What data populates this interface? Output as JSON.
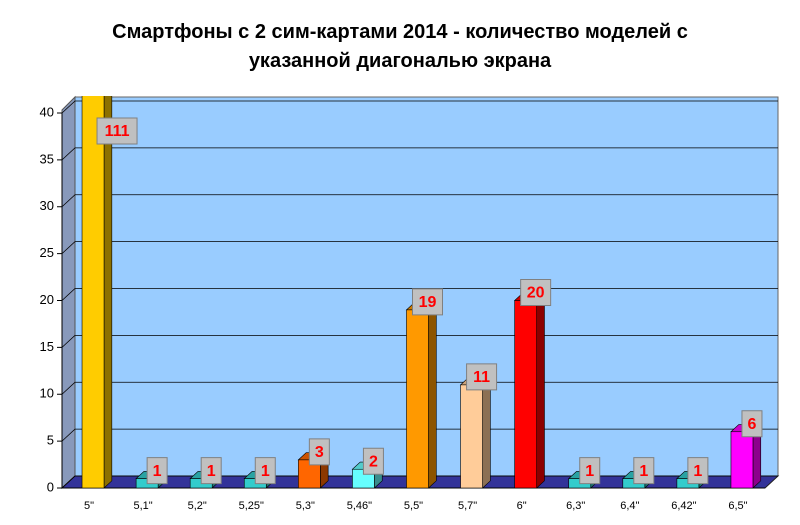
{
  "chart_data": {
    "type": "bar3d",
    "title": "Смартфоны с 2 сим-картами 2014 - количество моделей с указанной диагональю экрана",
    "categories": [
      "5\"",
      "5,1\"",
      "5,2\"",
      "5,25\"",
      "5,3\"",
      "5,46\"",
      "5,5\"",
      "5,7\"",
      "6\"",
      "6,3\"",
      "6,4\"",
      "6,42\"",
      "6,5\""
    ],
    "values": [
      111,
      1,
      1,
      1,
      3,
      2,
      19,
      11,
      20,
      1,
      1,
      1,
      6
    ],
    "colors": [
      "#ffcc00",
      "#33cccc",
      "#33cccc",
      "#33cccc",
      "#ff6600",
      "#66ffff",
      "#ff9900",
      "#ffcc99",
      "#ff0000",
      "#33cccc",
      "#33cccc",
      "#33cccc",
      "#ff00ff"
    ],
    "ylim": [
      0,
      40
    ],
    "yticks": [
      0,
      5,
      10,
      15,
      20,
      25,
      30,
      35,
      40
    ],
    "grid": true
  }
}
